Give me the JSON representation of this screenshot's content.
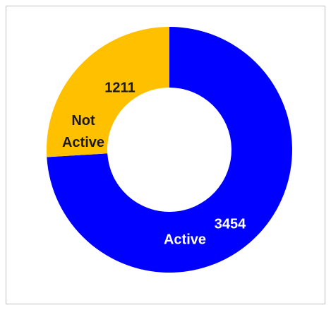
{
  "chart_data": {
    "type": "donut",
    "categories": [
      "Active",
      "Not Active"
    ],
    "values": [
      3454,
      1211
    ],
    "colors": [
      "#0000ff",
      "#ffc000"
    ],
    "label_colors": [
      "#ffffff",
      "#1a1a1a"
    ]
  }
}
